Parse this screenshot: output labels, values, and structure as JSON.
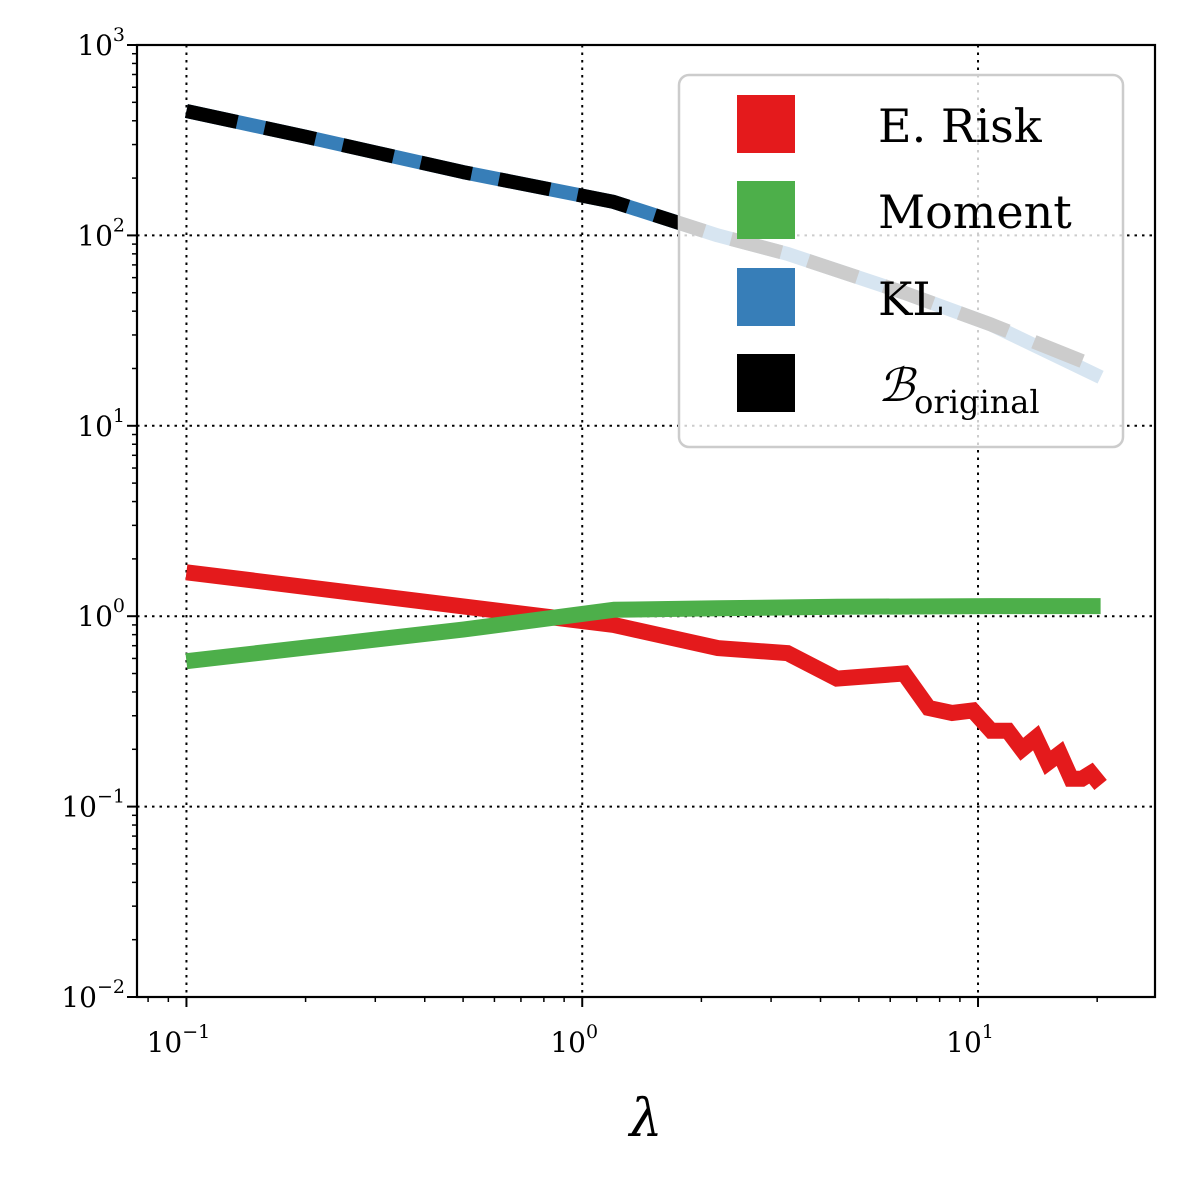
{
  "chart_data": {
    "type": "line",
    "title": "",
    "xlabel": "λ",
    "ylabel": "",
    "xscale": "log",
    "yscale": "log",
    "xlim": [
      0.075,
      28
    ],
    "ylim": [
      0.01,
      1000
    ],
    "grid": true,
    "legend_position": "top-right",
    "x_ticks": [
      {
        "base": "10",
        "exp": "−1"
      },
      {
        "base": "10",
        "exp": "0"
      },
      {
        "base": "10",
        "exp": "1"
      }
    ],
    "y_ticks": [
      {
        "base": "10",
        "exp": "−2"
      },
      {
        "base": "10",
        "exp": "−1"
      },
      {
        "base": "10",
        "exp": "0"
      },
      {
        "base": "10",
        "exp": "1"
      },
      {
        "base": "10",
        "exp": "2"
      },
      {
        "base": "10",
        "exp": "3"
      }
    ],
    "series": [
      {
        "name": "E. Risk",
        "color": "#e41a1c",
        "x": [
          0.1,
          1.2,
          2.2,
          3.3,
          4.4,
          6.5,
          7.5,
          8.6,
          9.7,
          10.8,
          11.9,
          12.9,
          14.0,
          15.0,
          16.1,
          17.2,
          18.3,
          19.3,
          20.4
        ],
        "y": [
          1.7,
          0.9,
          0.68,
          0.64,
          0.47,
          0.5,
          0.33,
          0.31,
          0.32,
          0.25,
          0.25,
          0.2,
          0.23,
          0.17,
          0.19,
          0.14,
          0.14,
          0.15,
          0.13
        ]
      },
      {
        "name": "Moment",
        "color": "#4daf4a",
        "x": [
          0.1,
          0.5,
          1.2,
          2.2,
          4.4,
          10.8,
          20.4
        ],
        "y": [
          0.58,
          0.85,
          1.08,
          1.1,
          1.12,
          1.13,
          1.13
        ]
      },
      {
        "name": "KL",
        "color": "#377eb8",
        "x": [
          0.1,
          0.2,
          0.5,
          1.2,
          2.2,
          3.3,
          6.5,
          10.8,
          20.4
        ],
        "y": [
          450,
          330,
          215,
          150,
          100,
          80,
          50,
          34,
          18
        ]
      },
      {
        "name": "ℬ",
        "name_subscript": "original",
        "color": "#000000",
        "x": [
          0.1,
          0.2,
          0.5,
          1.2,
          2.2,
          3.3,
          6.5,
          10.8,
          20.4
        ],
        "y": [
          450,
          330,
          215,
          150,
          100,
          80,
          50,
          34,
          20
        ]
      }
    ]
  }
}
